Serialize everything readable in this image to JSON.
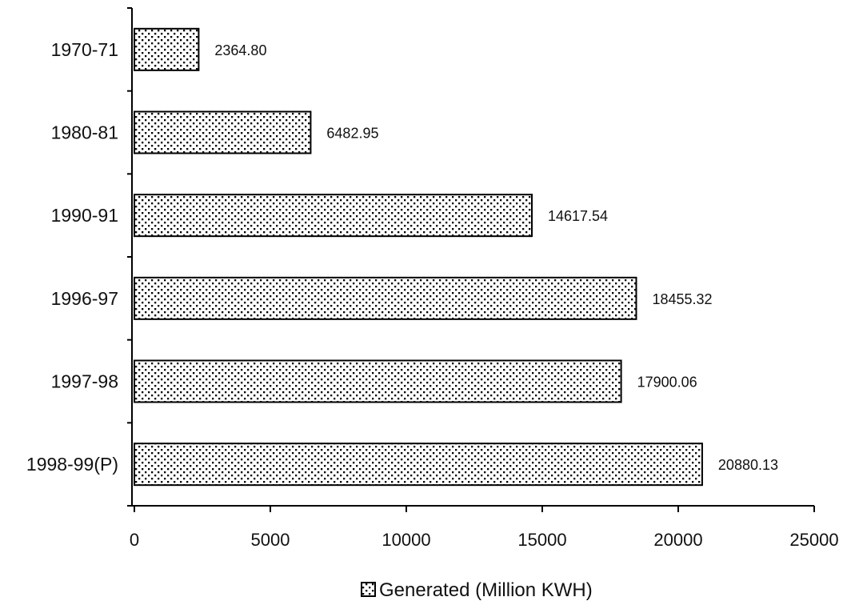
{
  "chart_data": {
    "type": "bar",
    "orientation": "horizontal",
    "categories": [
      "1970-71",
      "1980-81",
      "1990-91",
      "1996-97",
      "1997-98",
      "1998-99(P)"
    ],
    "series": [
      {
        "name": "Generated (Million KWH)",
        "values": [
          2364.8,
          6482.95,
          14617.54,
          18455.32,
          17900.06,
          20880.13
        ],
        "labels": [
          "2364.80",
          "6482.95",
          "14617.54",
          "18455.32",
          "17900.06",
          "20880.13"
        ]
      }
    ],
    "xlim": [
      0,
      25000
    ],
    "xticks": [
      "0",
      "5000",
      "10000",
      "15000",
      "20000",
      "25000"
    ],
    "title": "",
    "xlabel": "",
    "ylabel": "",
    "grid": false,
    "legend_position": "bottom",
    "bar_fill": "stippled",
    "colors": {
      "bar_bg": "#ffffff",
      "dots": "#000000",
      "axis": "#000000"
    }
  }
}
